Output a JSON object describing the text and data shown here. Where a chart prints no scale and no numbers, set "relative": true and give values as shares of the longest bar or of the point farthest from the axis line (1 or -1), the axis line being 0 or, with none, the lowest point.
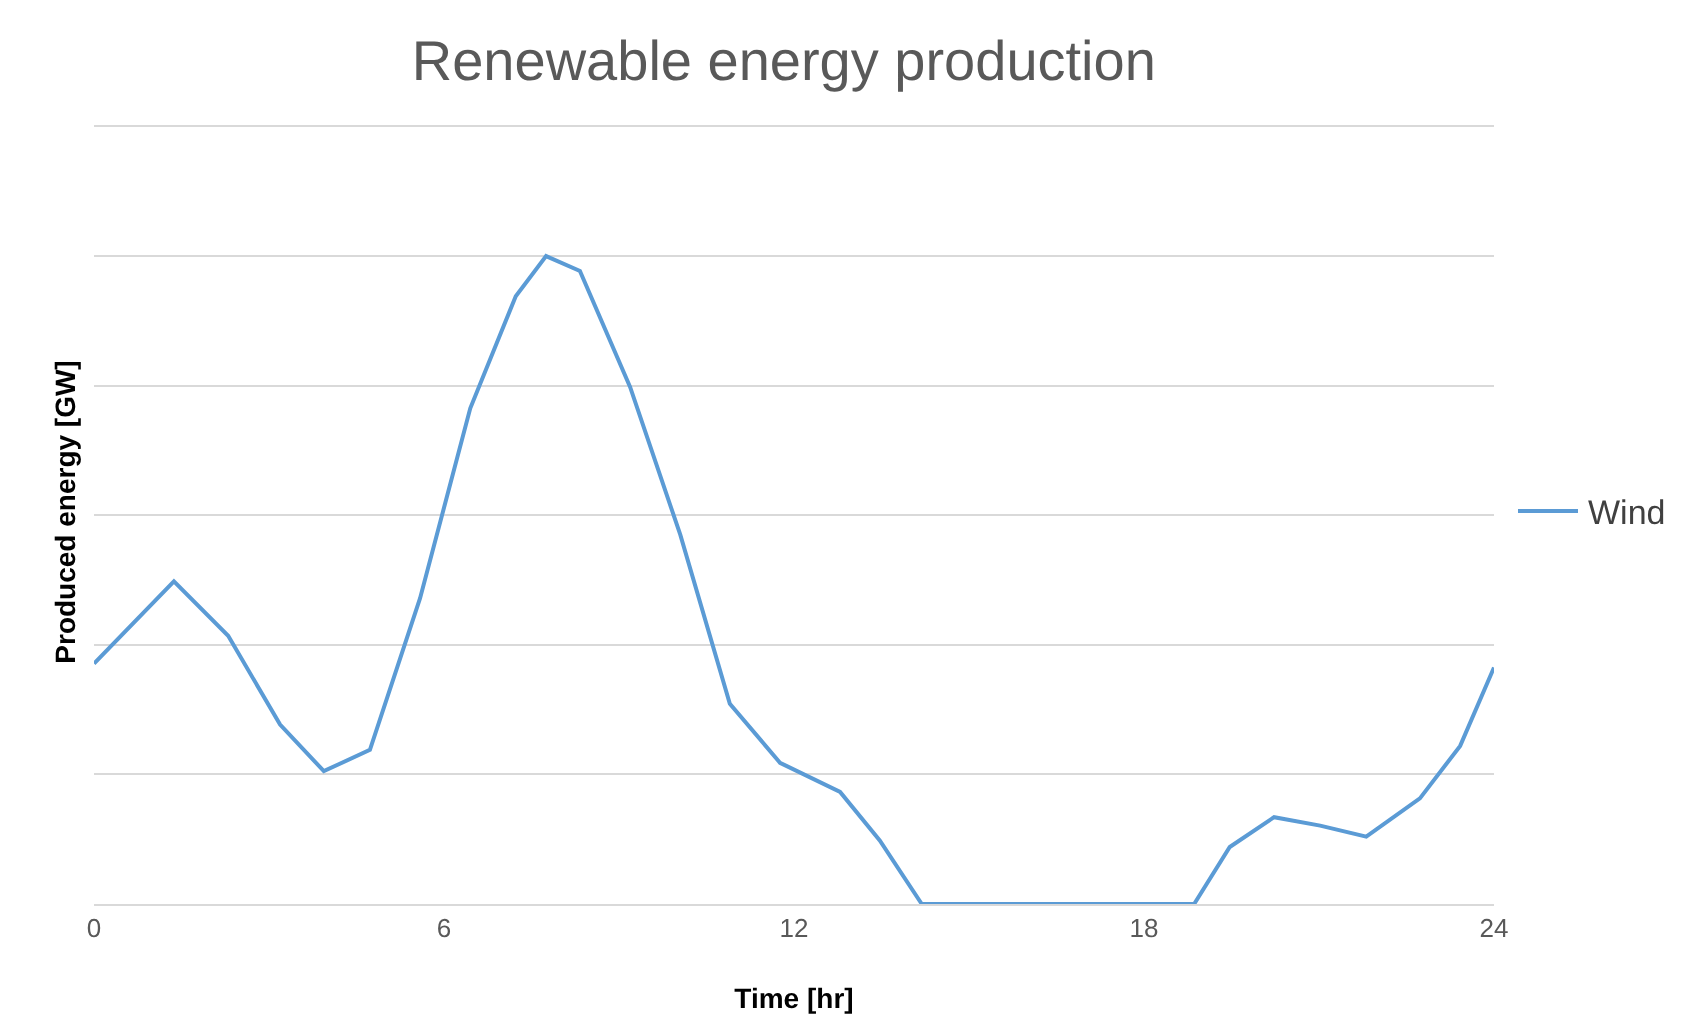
{
  "chart_data": {
    "type": "line",
    "title": "Renewable energy production",
    "xlabel": "Time [hr]",
    "ylabel": "Produced energy [GW]",
    "relative": true,
    "xlim": [
      0,
      24
    ],
    "xticks": [
      0,
      6,
      12,
      18,
      24
    ],
    "grid": "y",
    "legend": "right",
    "marker": "none",
    "line_style": "solid",
    "series": [
      {
        "name": "Wind",
        "color": "#5b9bd5",
        "x": [
          0,
          1.37,
          2.3,
          3.19,
          3.94,
          4.73,
          5.59,
          6.45,
          7.23,
          7.75,
          8.33,
          9.19,
          10.05,
          10.9,
          11.76,
          12.79,
          13.47,
          14.19,
          18.86,
          19.47,
          20.23,
          21.02,
          21.81,
          22.73,
          23.42,
          24
        ],
        "values": [
          0.371,
          0.498,
          0.414,
          0.277,
          0.205,
          0.238,
          0.472,
          0.765,
          0.938,
          1.0,
          0.977,
          0.798,
          0.57,
          0.309,
          0.218,
          0.173,
          0.098,
          0,
          0,
          0.088,
          0.134,
          0.121,
          0.104,
          0.163,
          0.244,
          0.365
        ]
      }
    ]
  }
}
